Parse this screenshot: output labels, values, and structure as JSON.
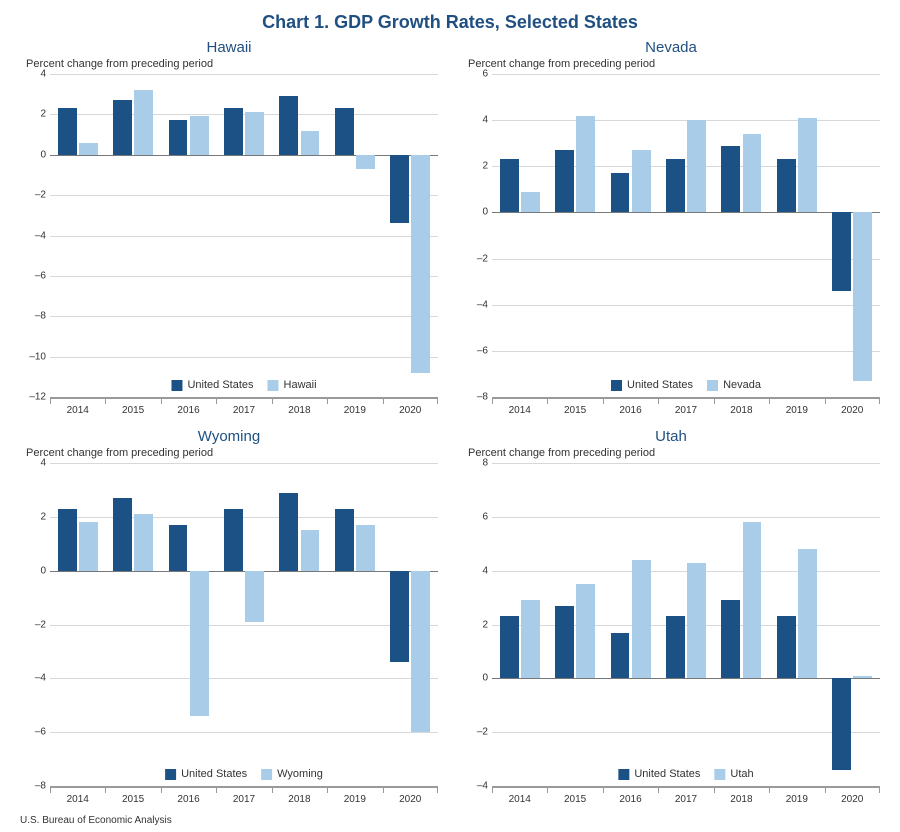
{
  "title": "Chart 1. GDP Growth Rates, Selected States",
  "source": "U.S. Bureau of Economic Analysis",
  "colors": {
    "us": "#1c5185",
    "state": "#a9cce8",
    "grid": "#d8d8d8",
    "axis": "#999999",
    "zero": "#777777",
    "title": "#205081",
    "text": "#333333",
    "bg": "#ffffff"
  },
  "subtitle": "Percent change from preceding period",
  "legend_us": "United States",
  "years": [
    "2014",
    "2015",
    "2016",
    "2017",
    "2018",
    "2019",
    "2020"
  ],
  "us_values": [
    2.3,
    2.7,
    1.7,
    2.3,
    2.9,
    2.3,
    -3.4
  ],
  "panels": [
    {
      "name": "Hawaii",
      "ymin": -12,
      "ymax": 4,
      "ystep": 2,
      "state_values": [
        0.6,
        3.2,
        1.9,
        2.1,
        1.2,
        -0.7,
        -10.8
      ]
    },
    {
      "name": "Nevada",
      "ymin": -8,
      "ymax": 6,
      "ystep": 2,
      "state_values": [
        0.9,
        4.2,
        2.7,
        4.0,
        3.4,
        4.1,
        -7.3
      ]
    },
    {
      "name": "Wyoming",
      "ymin": -8,
      "ymax": 4,
      "ystep": 2,
      "state_values": [
        1.8,
        2.1,
        -5.4,
        -1.9,
        1.5,
        1.7,
        -6.0
      ]
    },
    {
      "name": "Utah",
      "ymin": -4,
      "ymax": 8,
      "ystep": 2,
      "state_values": [
        2.9,
        3.5,
        4.4,
        4.3,
        5.8,
        4.8,
        0.1
      ]
    }
  ],
  "style": {
    "title_fontsize": 18,
    "panel_title_fontsize": 15,
    "subtitle_fontsize": 11,
    "tick_fontsize": 10,
    "legend_fontsize": 11,
    "bar_width_pct": 34,
    "bar_gap_pct": 2
  }
}
